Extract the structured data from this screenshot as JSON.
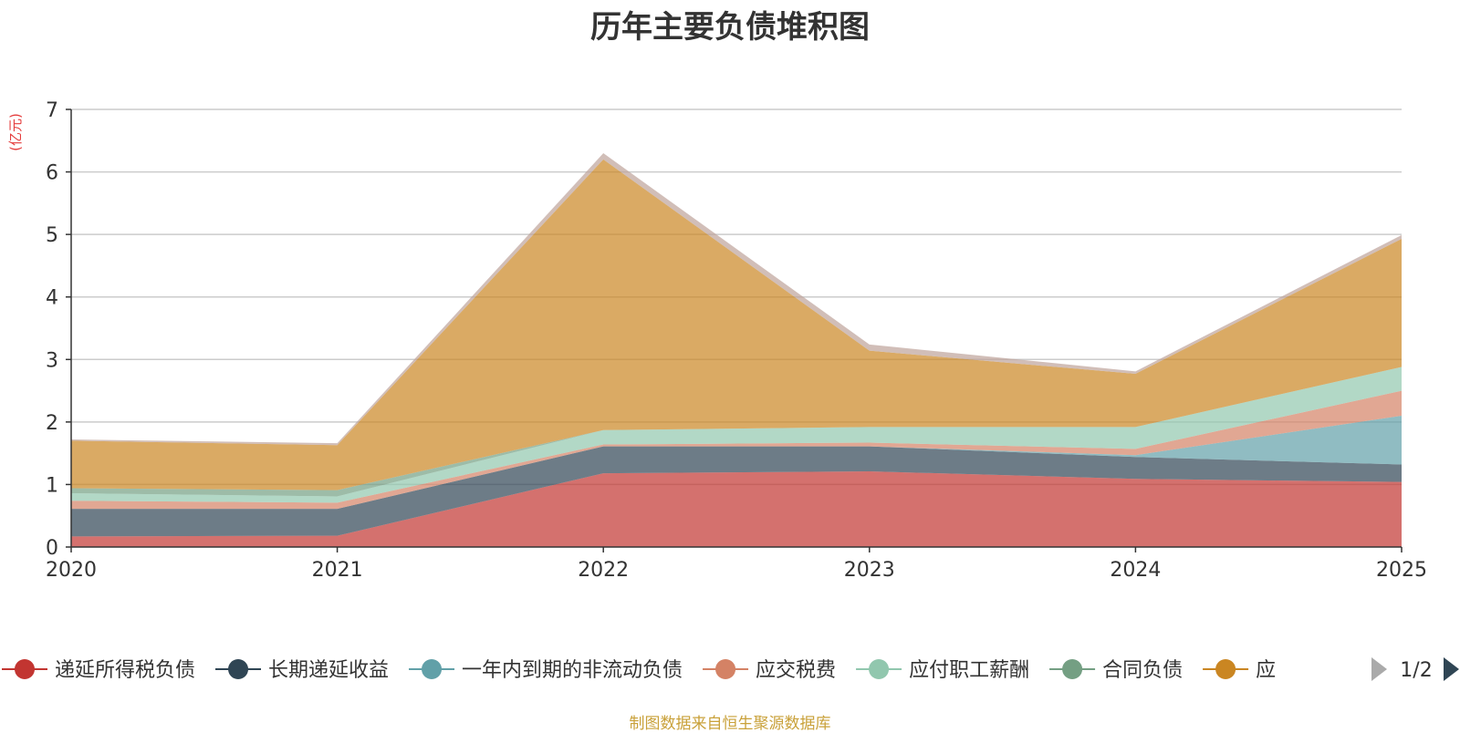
{
  "chart_data": {
    "type": "area",
    "stacked": true,
    "title": "历年主要负债堆积图",
    "ylabel": "(亿元)",
    "x": [
      "2020",
      "2021",
      "2022",
      "2023",
      "2024",
      "2025"
    ],
    "ylim": [
      0,
      7
    ],
    "yticks": [
      "0",
      "1",
      "2",
      "3",
      "4",
      "5",
      "6",
      "7"
    ],
    "grid": true,
    "legend_position": "bottom",
    "legend_page": "1/2",
    "series": [
      {
        "name": "递延所得税负债",
        "color": "#c23531",
        "values": [
          0.17,
          0.18,
          1.18,
          1.21,
          1.09,
          1.04
        ]
      },
      {
        "name": "长期递延收益",
        "color": "#2f4554",
        "values": [
          0.44,
          0.43,
          0.43,
          0.4,
          0.35,
          0.28
        ]
      },
      {
        "name": "一年内到期的非流动负债",
        "color": "#61a0a8",
        "values": [
          0.0,
          0.0,
          0.0,
          0.0,
          0.03,
          0.78
        ]
      },
      {
        "name": "应交税费",
        "color": "#d48265",
        "values": [
          0.13,
          0.1,
          0.03,
          0.06,
          0.1,
          0.4
        ]
      },
      {
        "name": "应付职工薪酬",
        "color": "#91c7ae",
        "values": [
          0.12,
          0.1,
          0.23,
          0.25,
          0.35,
          0.38
        ]
      },
      {
        "name": "合同负债",
        "color": "#749f83",
        "values": [
          0.08,
          0.1,
          0.0,
          0.0,
          0.0,
          0.0
        ]
      },
      {
        "name": "应",
        "color": "#ca8622",
        "values": [
          0.76,
          0.72,
          4.33,
          1.22,
          0.85,
          2.05
        ]
      },
      {
        "name": "",
        "color": "#bda29a",
        "legend": false,
        "values": [
          0.02,
          0.03,
          0.1,
          0.1,
          0.04,
          0.06
        ]
      }
    ]
  },
  "source_note": "制图数据来自恒生聚源数据库"
}
